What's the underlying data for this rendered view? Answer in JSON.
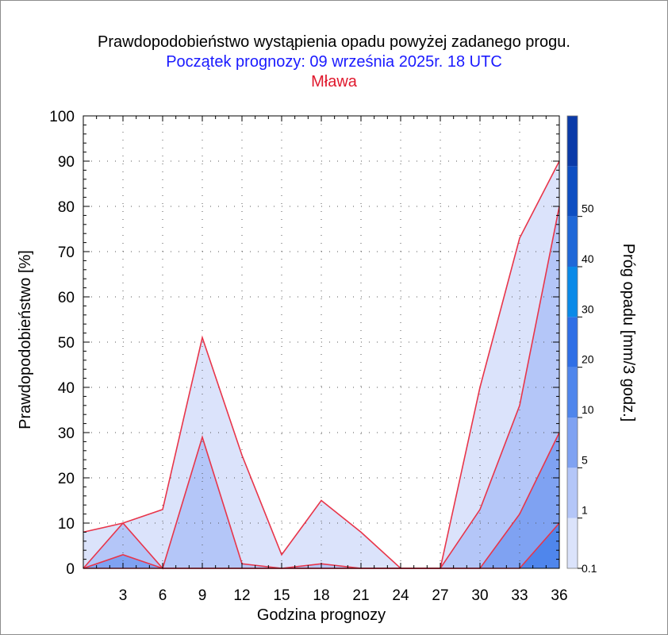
{
  "title": "Prawdopodobieństwo wystąpienia opadu powyżej zadanego progu.",
  "subtitle": "Początek prognozy: 09 września 2025r. 18 UTC",
  "location": "Mława",
  "colors": {
    "title": "#000000",
    "subtitle": "#1a1aff",
    "location": "#e0182d",
    "line": "#e8354a",
    "fills": [
      "#dbe3fb",
      "#b4c6f8",
      "#7fa2f2",
      "#4f86ec",
      "#2f6fe6",
      "#0a8ae8",
      "#1f68d8",
      "#0d4ec2",
      "#0a3aa8"
    ]
  },
  "chart_data": {
    "type": "area",
    "xlabel": "Godzina prognozy",
    "ylabel": "Prawdopodobieństwo [%]",
    "xlim": [
      0,
      36
    ],
    "ylim": [
      0,
      100
    ],
    "x_ticks": [
      "3",
      "6",
      "9",
      "12",
      "15",
      "18",
      "21",
      "24",
      "27",
      "30",
      "33",
      "36"
    ],
    "y_ticks": [
      "0",
      "10",
      "20",
      "30",
      "40",
      "50",
      "60",
      "70",
      "80",
      "90",
      "100"
    ],
    "x": [
      0,
      3,
      6,
      9,
      12,
      15,
      18,
      21,
      24,
      27,
      30,
      33,
      36
    ],
    "series": [
      {
        "threshold": "0.1",
        "values": [
          8,
          10,
          13,
          51,
          25,
          3,
          15,
          8,
          0,
          0,
          40,
          73,
          90
        ]
      },
      {
        "threshold": "1",
        "values": [
          0,
          10,
          0,
          29,
          1,
          0,
          1,
          0,
          0,
          0,
          13,
          36,
          80
        ]
      },
      {
        "threshold": "5",
        "values": [
          0,
          3,
          0,
          0,
          0,
          0,
          0,
          0,
          0,
          0,
          0,
          12,
          30
        ]
      },
      {
        "threshold": "10",
        "values": [
          0,
          0,
          0,
          0,
          0,
          0,
          0,
          0,
          0,
          0,
          0,
          0,
          10
        ]
      }
    ],
    "colorbar": {
      "label": "Próg opadu [mm/3 godz.]",
      "ticks": [
        "0.1",
        "1",
        "5",
        "10",
        "20",
        "30",
        "40",
        "50"
      ]
    },
    "grid": true
  }
}
